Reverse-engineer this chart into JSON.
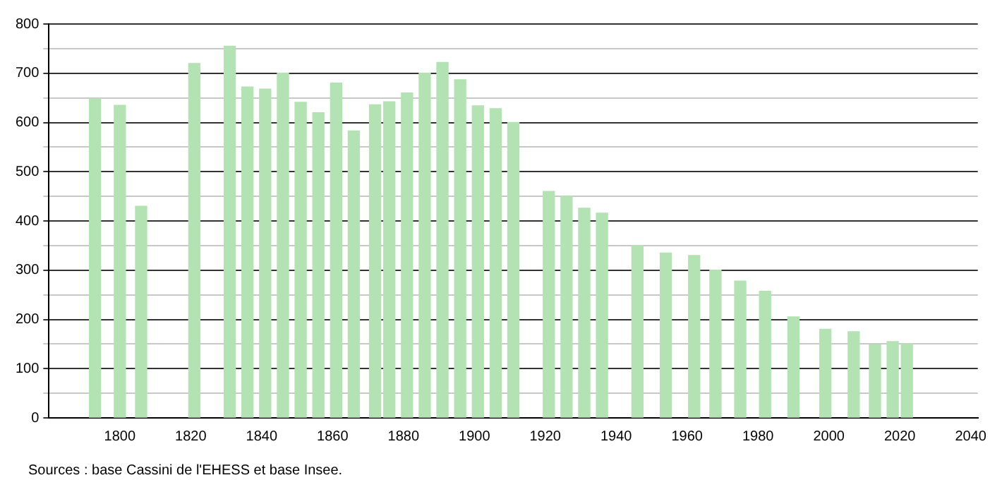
{
  "chart_data": {
    "type": "bar",
    "x": [
      1793,
      1800,
      1806,
      1821,
      1831,
      1836,
      1841,
      1846,
      1851,
      1856,
      1861,
      1866,
      1872,
      1876,
      1881,
      1886,
      1891,
      1896,
      1901,
      1906,
      1911,
      1921,
      1926,
      1931,
      1936,
      1946,
      1954,
      1962,
      1968,
      1975,
      1982,
      1990,
      1999,
      2007,
      2013,
      2018,
      2022
    ],
    "values": [
      648,
      635,
      430,
      720,
      755,
      672,
      668,
      700,
      641,
      620,
      680,
      583,
      636,
      642,
      660,
      700,
      722,
      687,
      634,
      628,
      600,
      460,
      450,
      426,
      416,
      350,
      335,
      330,
      300,
      278,
      257,
      205,
      180,
      175,
      148,
      155,
      150
    ],
    "color": "#b3e3b3",
    "xlim": [
      1780,
      2042
    ],
    "xticks": [
      1800,
      1820,
      1840,
      1860,
      1880,
      1900,
      1920,
      1940,
      1960,
      1980,
      2000,
      2020,
      2040
    ],
    "ylim": [
      0,
      800
    ],
    "yticks": [
      0,
      {
        "value": 50,
        "label": null
      },
      100,
      {
        "value": 150,
        "label": null
      },
      200,
      {
        "value": 250,
        "label": null
      },
      300,
      {
        "value": 350,
        "label": null
      },
      400,
      {
        "value": 450,
        "label": null
      },
      500,
      {
        "value": 550,
        "label": null
      },
      600,
      {
        "value": 650,
        "label": null
      },
      700,
      {
        "value": 750,
        "label": null
      },
      800
    ],
    "grid": "y",
    "annotations": [
      "Sources : base Cassini de l'EHESS et base Insee."
    ]
  }
}
